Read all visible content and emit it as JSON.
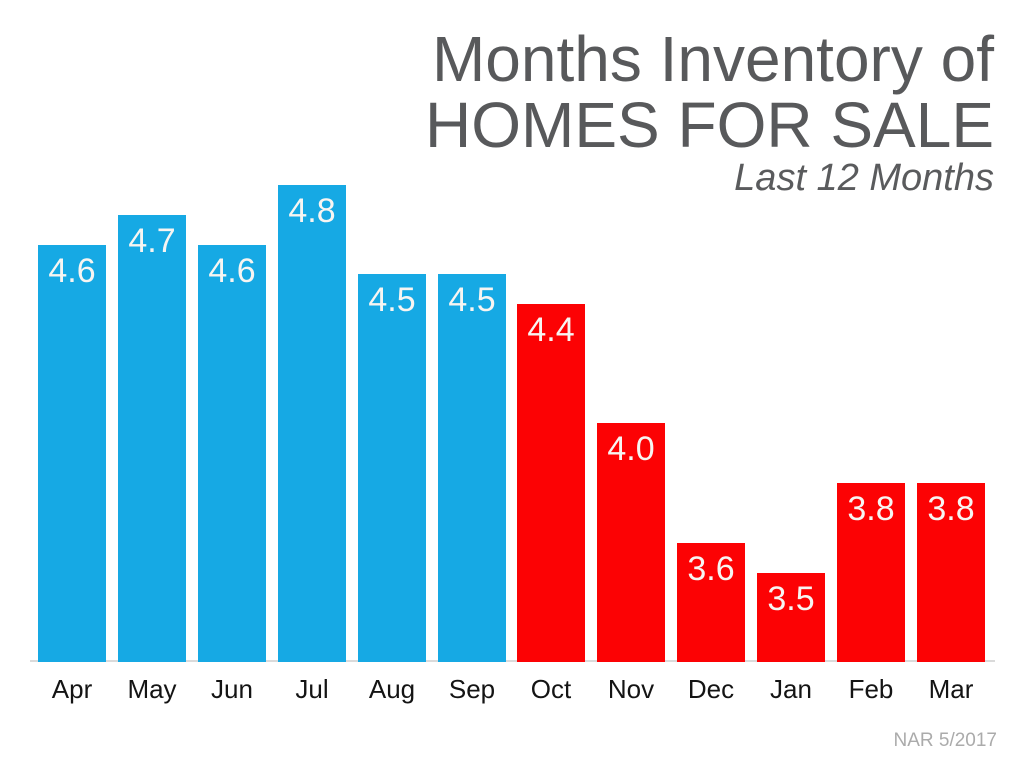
{
  "title": {
    "line1": "Months Inventory of",
    "line2": "HOMES FOR SALE",
    "subtitle": "Last 12 Months"
  },
  "source": {
    "label": "NAR 5/2017"
  },
  "colors": {
    "blue": "#16A9E4",
    "red": "#FC0204",
    "title_gray": "#58595B",
    "subtitle_gray": "#5A5B5D",
    "bar_value_label": "#F7F5F2",
    "month_label": "#141414",
    "axis_line": "#DADADA",
    "source_gray": "#ABABAB",
    "background": "#FFFFFF"
  },
  "chart_data": {
    "type": "bar",
    "title": "Months Inventory of HOMES FOR SALE",
    "subtitle": "Last 12 Months",
    "categories": [
      "Apr",
      "May",
      "Jun",
      "Jul",
      "Aug",
      "Sep",
      "Oct",
      "Nov",
      "Dec",
      "Jan",
      "Feb",
      "Mar"
    ],
    "values": [
      4.6,
      4.7,
      4.6,
      4.8,
      4.5,
      4.5,
      4.4,
      4.0,
      3.6,
      3.5,
      3.8,
      3.8
    ],
    "value_labels": [
      "4.6",
      "4.7",
      "4.6",
      "4.8",
      "4.5",
      "4.5",
      "4.4",
      "4.0",
      "3.6",
      "3.5",
      "3.8",
      "3.8"
    ],
    "bar_colors": [
      "blue",
      "blue",
      "blue",
      "blue",
      "blue",
      "blue",
      "red",
      "red",
      "red",
      "red",
      "red",
      "red"
    ],
    "xlabel": "",
    "ylabel": "",
    "ylim": [
      3.2,
      4.85
    ],
    "grid": false,
    "legend": false,
    "value_labels_position": "inside-top",
    "source": "NAR 5/2017"
  }
}
